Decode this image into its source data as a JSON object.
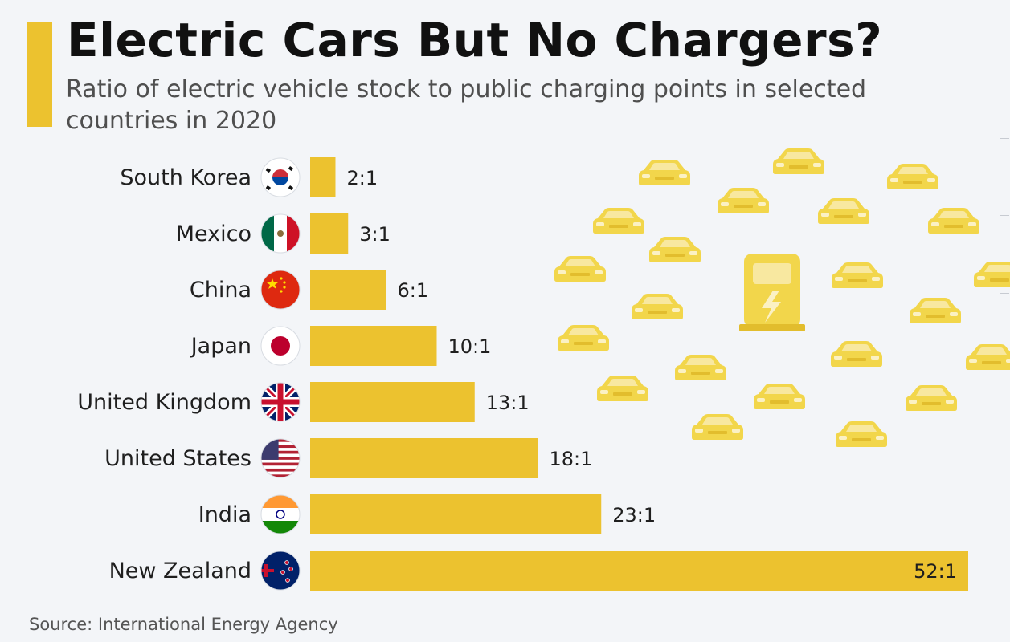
{
  "header": {
    "title": "Electric Cars But No Chargers?",
    "subtitle": "Ratio of electric vehicle stock to public charging points in selected countries in 2020"
  },
  "footer": {
    "source": "Source: International Energy Agency"
  },
  "colors": {
    "accent": "#ecc22f",
    "car": "#f2d64b",
    "text": "#1f1f1f"
  },
  "chart_data": {
    "type": "bar",
    "orientation": "horizontal",
    "title": "Electric Cars But No Chargers?",
    "subtitle": "Ratio of electric vehicle stock to public charging points in selected countries in 2020",
    "categories": [
      "South Korea",
      "Mexico",
      "China",
      "Japan",
      "United Kingdom",
      "United States",
      "India",
      "New Zealand"
    ],
    "values": [
      2,
      3,
      6,
      10,
      13,
      18,
      23,
      52
    ],
    "value_labels": [
      "2:1",
      "3:1",
      "6:1",
      "10:1",
      "13:1",
      "18:1",
      "23:1",
      "52:1"
    ],
    "flags": [
      "south-korea-flag",
      "mexico-flag",
      "china-flag",
      "japan-flag",
      "uk-flag",
      "usa-flag",
      "india-flag",
      "new-zealand-flag"
    ],
    "xlabel": "",
    "ylabel": "",
    "xlim": [
      0,
      52
    ],
    "grid": false,
    "legend": "none"
  }
}
